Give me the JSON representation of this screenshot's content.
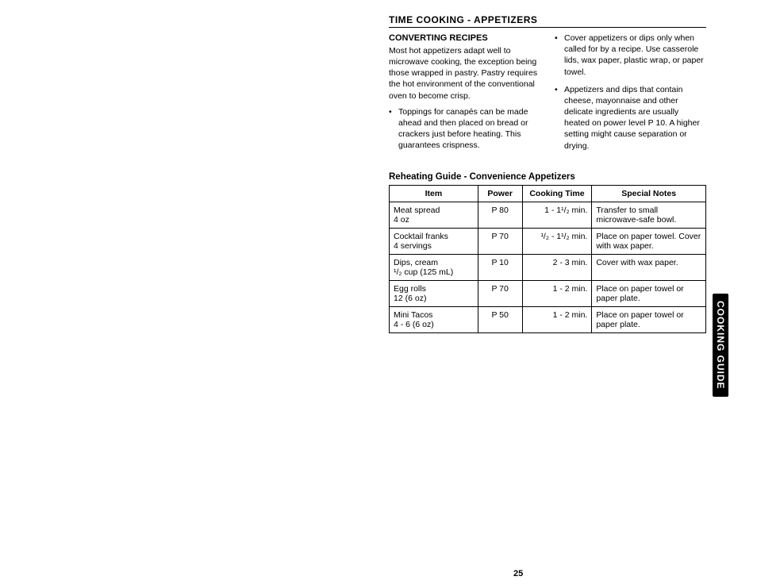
{
  "topTitle": "TIME COOKING - APPETIZERS",
  "converting": {
    "heading": "CONVERTING RECIPES",
    "intro": "Most hot appetizers adapt well to microwave cooking, the exception being those wrapped in pastry. Pastry requires the hot environment of the conventional oven to become crisp.",
    "leftBullets": [
      "Toppings for canapés can be made ahead and then placed on bread or crackers just before heating. This guarantees crispness."
    ],
    "rightBullets": [
      "Cover appetizers or dips only when called for by a recipe. Use casserole lids, wax paper, plastic wrap, or paper towel.",
      "Appetizers and dips that contain cheese, mayonnaise and other delicate ingredients are usually heated on power level P 10. A higher setting might cause separation or drying."
    ]
  },
  "tableHeading": "Reheating Guide - Convenience Appetizers",
  "table": {
    "headers": [
      "Item",
      "Power",
      "Cooking Time",
      "Special Notes"
    ],
    "rows": [
      {
        "item1": "Meat spread",
        "item2": "4 oz",
        "power": "P 80",
        "time": "1 - 1¹/₂ min.",
        "notes": "Transfer to small microwave-safe bowl."
      },
      {
        "item1": "Cocktail franks",
        "item2": "4 servings",
        "power": "P 70",
        "time": "¹/₂ - 1¹/₂ min.",
        "notes": "Place on paper towel. Cover with wax paper."
      },
      {
        "item1": "Dips, cream",
        "item2": "¹/₂ cup (125 mL)",
        "power": "P 10",
        "time": "2 - 3 min.",
        "notes": "Cover with wax paper."
      },
      {
        "item1": "Egg rolls",
        "item2": "12 (6 oz)",
        "power": "P 70",
        "time": "1 - 2 min.",
        "notes": "Place on paper towel or paper plate."
      },
      {
        "item1": "Mini Tacos",
        "item2": "4 - 6 (6 oz)",
        "power": "P 50",
        "time": "1 - 2 min.",
        "notes": "Place on paper towel or paper plate."
      }
    ]
  },
  "sideTab": "COOKING GUIDE",
  "pageNumber": "25",
  "colWidths": {
    "item": "28%",
    "power": "14%",
    "time": "22%",
    "notes": "36%"
  }
}
